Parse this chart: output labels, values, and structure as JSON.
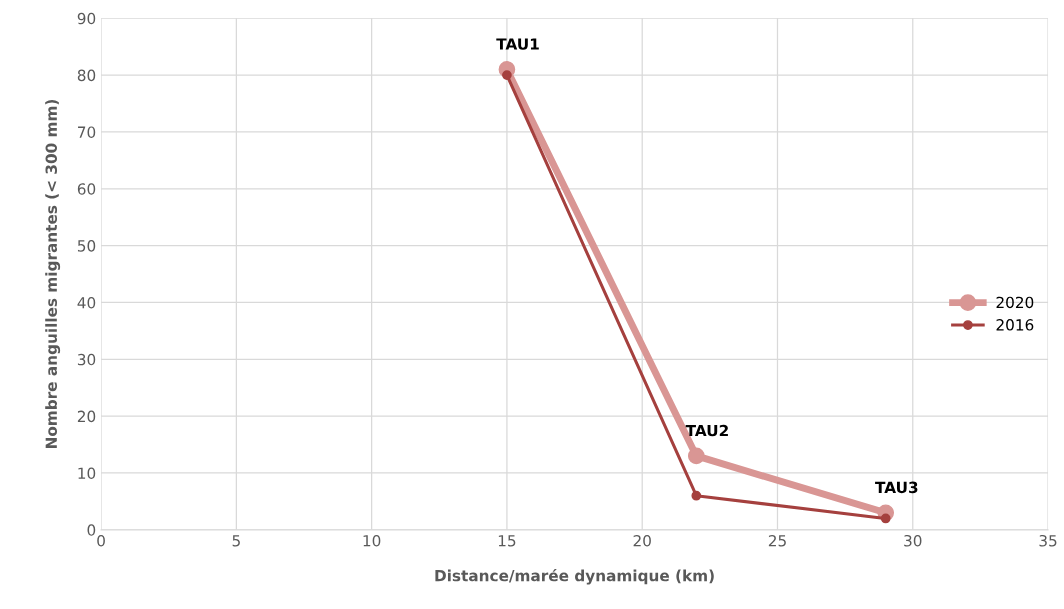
{
  "chart_data": {
    "type": "line",
    "xlabel": "Distance/marée dynamique (km)",
    "ylabel": "Nombre anguilles migrantes (< 300 mm)",
    "x": [
      15,
      22,
      29
    ],
    "series": [
      {
        "name": "2020",
        "color": "#d99694",
        "values": [
          81,
          13,
          3
        ]
      },
      {
        "name": "2016",
        "color": "#a5403e",
        "values": [
          80,
          6,
          2
        ]
      }
    ],
    "xlim": [
      0,
      35
    ],
    "xticks": [
      0,
      5,
      10,
      15,
      20,
      25,
      30,
      35
    ],
    "ylim": [
      0,
      90
    ],
    "yticks": [
      0,
      10,
      20,
      30,
      40,
      50,
      60,
      70,
      80,
      90
    ],
    "grid": true,
    "legend": "right",
    "marker": "circle",
    "annotations": [
      {
        "text": "TAU1",
        "x": 15,
        "y": 81
      },
      {
        "text": "TAU2",
        "x": 22,
        "y": 13
      },
      {
        "text": "TAU3",
        "x": 29,
        "y": 3
      }
    ]
  }
}
